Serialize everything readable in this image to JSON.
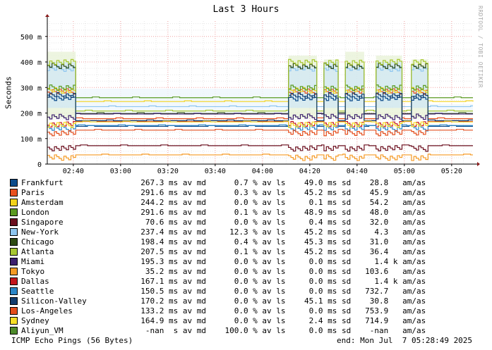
{
  "chart_data": {
    "type": "line",
    "title": "Last 3 Hours",
    "ylabel": "Seconds",
    "y_unit_suffix": "m",
    "ylim": [
      0,
      560
    ],
    "yticks": [
      0,
      100,
      200,
      300,
      400,
      500
    ],
    "ytick_labels": [
      "0",
      "100 m",
      "200 m",
      "300 m",
      "400 m",
      "500 m"
    ],
    "x_start_minutes": 0,
    "x_end_minutes": 180,
    "xticks_minutes": [
      11,
      31,
      51,
      71,
      91,
      111,
      131,
      151,
      171
    ],
    "xtick_labels": [
      "02:40",
      "03:00",
      "03:20",
      "03:40",
      "04:00",
      "04:20",
      "04:40",
      "05:00",
      "05:20"
    ],
    "grid": true,
    "series": [
      {
        "name": "Frankfurt",
        "color": "#0b4b8a",
        "flat": 148,
        "spike": 270
      },
      {
        "name": "Paris",
        "color": "#e8501f",
        "flat": 178,
        "spike": 295
      },
      {
        "name": "Amsterdam",
        "color": "#f2d21b",
        "flat": 245,
        "spike": 300
      },
      {
        "name": "London",
        "color": "#5a9a21",
        "flat": 260,
        "spike": 310
      },
      {
        "name": "Singapore",
        "color": "#6b0f1e",
        "flat": 72,
        "spike": 72
      },
      {
        "name": "New-York",
        "color": "#8ec6f0",
        "flat": 225,
        "spike": 385
      },
      {
        "name": "Chicago",
        "color": "#2d4a12",
        "flat": 198,
        "spike": 395
      },
      {
        "name": "Atlanta",
        "color": "#a7c730",
        "flat": 208,
        "spike": 410
      },
      {
        "name": "Miami",
        "color": "#3c1f6e",
        "flat": 196,
        "spike": 196
      },
      {
        "name": "Tokyo",
        "color": "#f59a24",
        "flat": 36,
        "spike": 36
      },
      {
        "name": "Dallas",
        "color": "#c4161c",
        "flat": 167,
        "spike": 167
      },
      {
        "name": "Seattle",
        "color": "#2a86c8",
        "flat": 151,
        "spike": 151
      },
      {
        "name": "Silicon-Valley",
        "color": "#123c6e",
        "flat": 170,
        "spike": 280
      },
      {
        "name": "Los-Angeles",
        "color": "#e44d1c",
        "flat": 133,
        "spike": 133
      },
      {
        "name": "Sydney",
        "color": "#f6df27",
        "flat": 165,
        "spike": 165
      },
      {
        "name": "Aliyun_VM",
        "color": "#4d8a2b",
        "flat": null,
        "spike": null
      }
    ]
  },
  "legend": [
    {
      "name": "Frankfurt",
      "color": "#0b4b8a",
      "stats": "  267.3 ms av md      0.7 % av ls    49.0 ms sd    28.8   am/as"
    },
    {
      "name": "Paris",
      "color": "#e8501f",
      "stats": "  291.6 ms av md      0.3 % av ls    45.2 ms sd    45.9   am/as"
    },
    {
      "name": "Amsterdam",
      "color": "#f2d21b",
      "stats": "  244.2 ms av md      0.0 % av ls     0.1 ms sd    54.2   am/as"
    },
    {
      "name": "London",
      "color": "#5a9a21",
      "stats": "  291.6 ms av md      0.1 % av ls    48.9 ms sd    48.0   am/as"
    },
    {
      "name": "Singapore",
      "color": "#6b0f1e",
      "stats": "   70.6 ms av md      0.0 % av ls     0.4 ms sd    32.0   am/as"
    },
    {
      "name": "New-York",
      "color": "#8ec6f0",
      "stats": "  237.4 ms av md     12.3 % av ls    45.2 ms sd     4.3   am/as"
    },
    {
      "name": "Chicago",
      "color": "#2d4a12",
      "stats": "  198.4 ms av md      0.4 % av ls    45.3 ms sd    31.0   am/as"
    },
    {
      "name": "Atlanta",
      "color": "#a7c730",
      "stats": "  207.5 ms av md      0.1 % av ls    45.2 ms sd    36.4   am/as"
    },
    {
      "name": "Miami",
      "color": "#3c1f6e",
      "stats": "  195.3 ms av md      0.0 % av ls     0.0 ms sd     1.4 k am/as"
    },
    {
      "name": "Tokyo",
      "color": "#f59a24",
      "stats": "   35.2 ms av md      0.0 % av ls     0.0 ms sd   103.6   am/as"
    },
    {
      "name": "Dallas",
      "color": "#c4161c",
      "stats": "  167.1 ms av md      0.0 % av ls     0.0 ms sd     1.4 k am/as"
    },
    {
      "name": "Seattle",
      "color": "#2a86c8",
      "stats": "  150.5 ms av md      0.0 % av ls     0.0 ms sd   732.7   am/as"
    },
    {
      "name": "Silicon-Valley",
      "color": "#123c6e",
      "stats": "  170.2 ms av md      0.0 % av ls    45.1 ms sd    30.8   am/as"
    },
    {
      "name": "Los-Angeles",
      "color": "#e44d1c",
      "stats": "  133.2 ms av md      0.0 % av ls     0.0 ms sd   753.9   am/as"
    },
    {
      "name": "Sydney",
      "color": "#f6df27",
      "stats": "  164.9 ms av md      0.0 % av ls     2.4 ms sd   714.9   am/as"
    },
    {
      "name": "Aliyun_VM",
      "color": "#4d8a2b",
      "stats": "   -nan  s av md    100.0 % av ls     0.0 ms sd    -nan   am/as"
    }
  ],
  "footer": {
    "left": "ICMP Echo Pings (56 Bytes)",
    "right": "end: Mon Jul  7 05:28:49 2025"
  },
  "watermark": "RRDTOOL / TOBI OETIKER",
  "spike_windows_minutes": [
    [
      0,
      12
    ],
    [
      102,
      114
    ],
    [
      117,
      123
    ],
    [
      126,
      134
    ],
    [
      139,
      150
    ],
    [
      154,
      161
    ]
  ]
}
